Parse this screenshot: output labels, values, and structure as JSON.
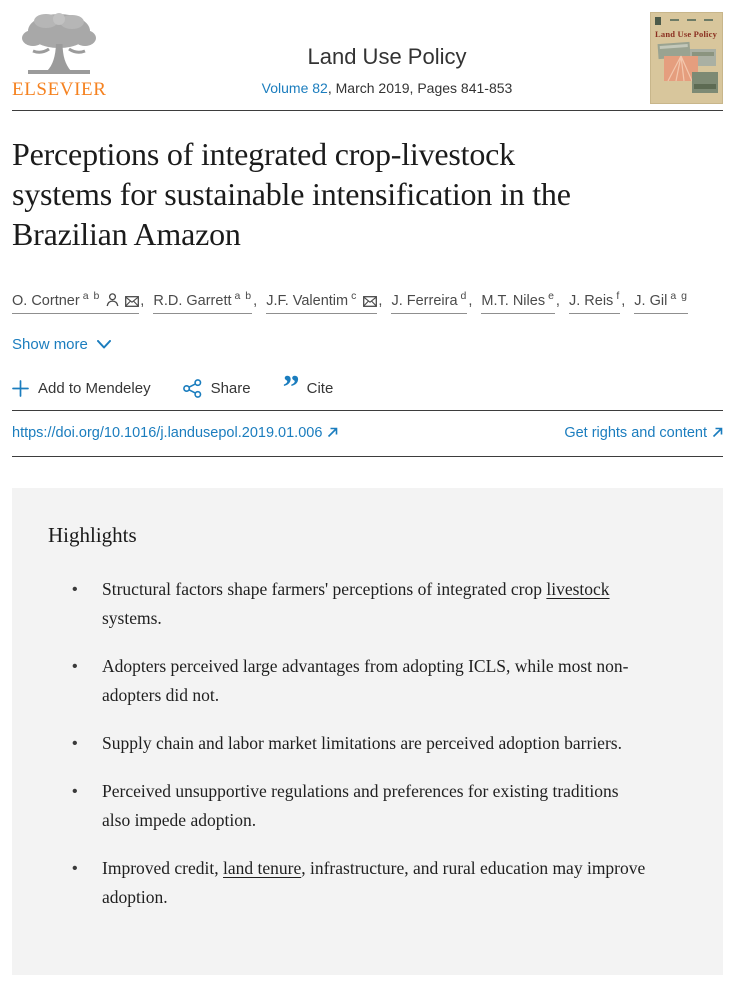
{
  "header": {
    "elsevier_wordmark": "ELSEVIER",
    "journal_title": "Land Use Policy",
    "volume_link": "Volume 82",
    "issue_info": ", March 2019, Pages 841-853",
    "cover_title": "Land Use Policy"
  },
  "article": {
    "title_lines": [
      "Perceptions of integrated crop-livestock",
      "systems for sustainable intensification in the",
      "Brazilian Amazon"
    ]
  },
  "authors": {
    "separator": ", ",
    "show_more_label": "Show more",
    "list": [
      {
        "name": "O. Cortner",
        "sup": "a b",
        "person_icon": true,
        "email_icon": true
      },
      {
        "name": "R.D. Garrett",
        "sup": "a b"
      },
      {
        "name": "J.F. Valentim",
        "sup": "c",
        "email_icon": true
      },
      {
        "name": "J. Ferreira",
        "sup": "d"
      },
      {
        "name": "M.T. Niles",
        "sup": "e"
      },
      {
        "name": "J. Reis",
        "sup": "f"
      },
      {
        "name": "J. Gil",
        "sup": "a g"
      }
    ]
  },
  "actions": {
    "mendeley_label": "Add to Mendeley",
    "share_label": "Share",
    "cite_label": "Cite",
    "cite_glyph": "”"
  },
  "links": {
    "doi": "https://doi.org/10.1016/j.landusepol.2019.01.006",
    "rights": "Get rights and content"
  },
  "highlights": {
    "title": "Highlights",
    "bullet_char": "•",
    "items": [
      [
        {
          "t": "Structural factors shape farmers' perceptions of integrated crop "
        },
        {
          "t": "livestock",
          "u": true
        },
        {
          "t": " systems."
        }
      ],
      [
        {
          "t": "Adopters perceived large advantages from adopting ICLS, while most non-adopters did not."
        }
      ],
      [
        {
          "t": "Supply chain and labor market limitations are perceived adoption barriers."
        }
      ],
      [
        {
          "t": "Perceived unsupportive regulations and preferences for existing traditions also impede adoption."
        }
      ],
      [
        {
          "t": "Improved credit, "
        },
        {
          "t": "land tenure",
          "u": true
        },
        {
          "t": ", infrastructure, and rural education may improve adoption."
        }
      ]
    ]
  },
  "colors": {
    "link_blue": "#1b7dbe",
    "elsevier_orange": "#f58220",
    "rule_gray": "#3d3d3d",
    "highlights_bg": "#f3f3f3",
    "cover_bg": "#d8c69c",
    "cover_title_red": "#8a2e1f"
  }
}
